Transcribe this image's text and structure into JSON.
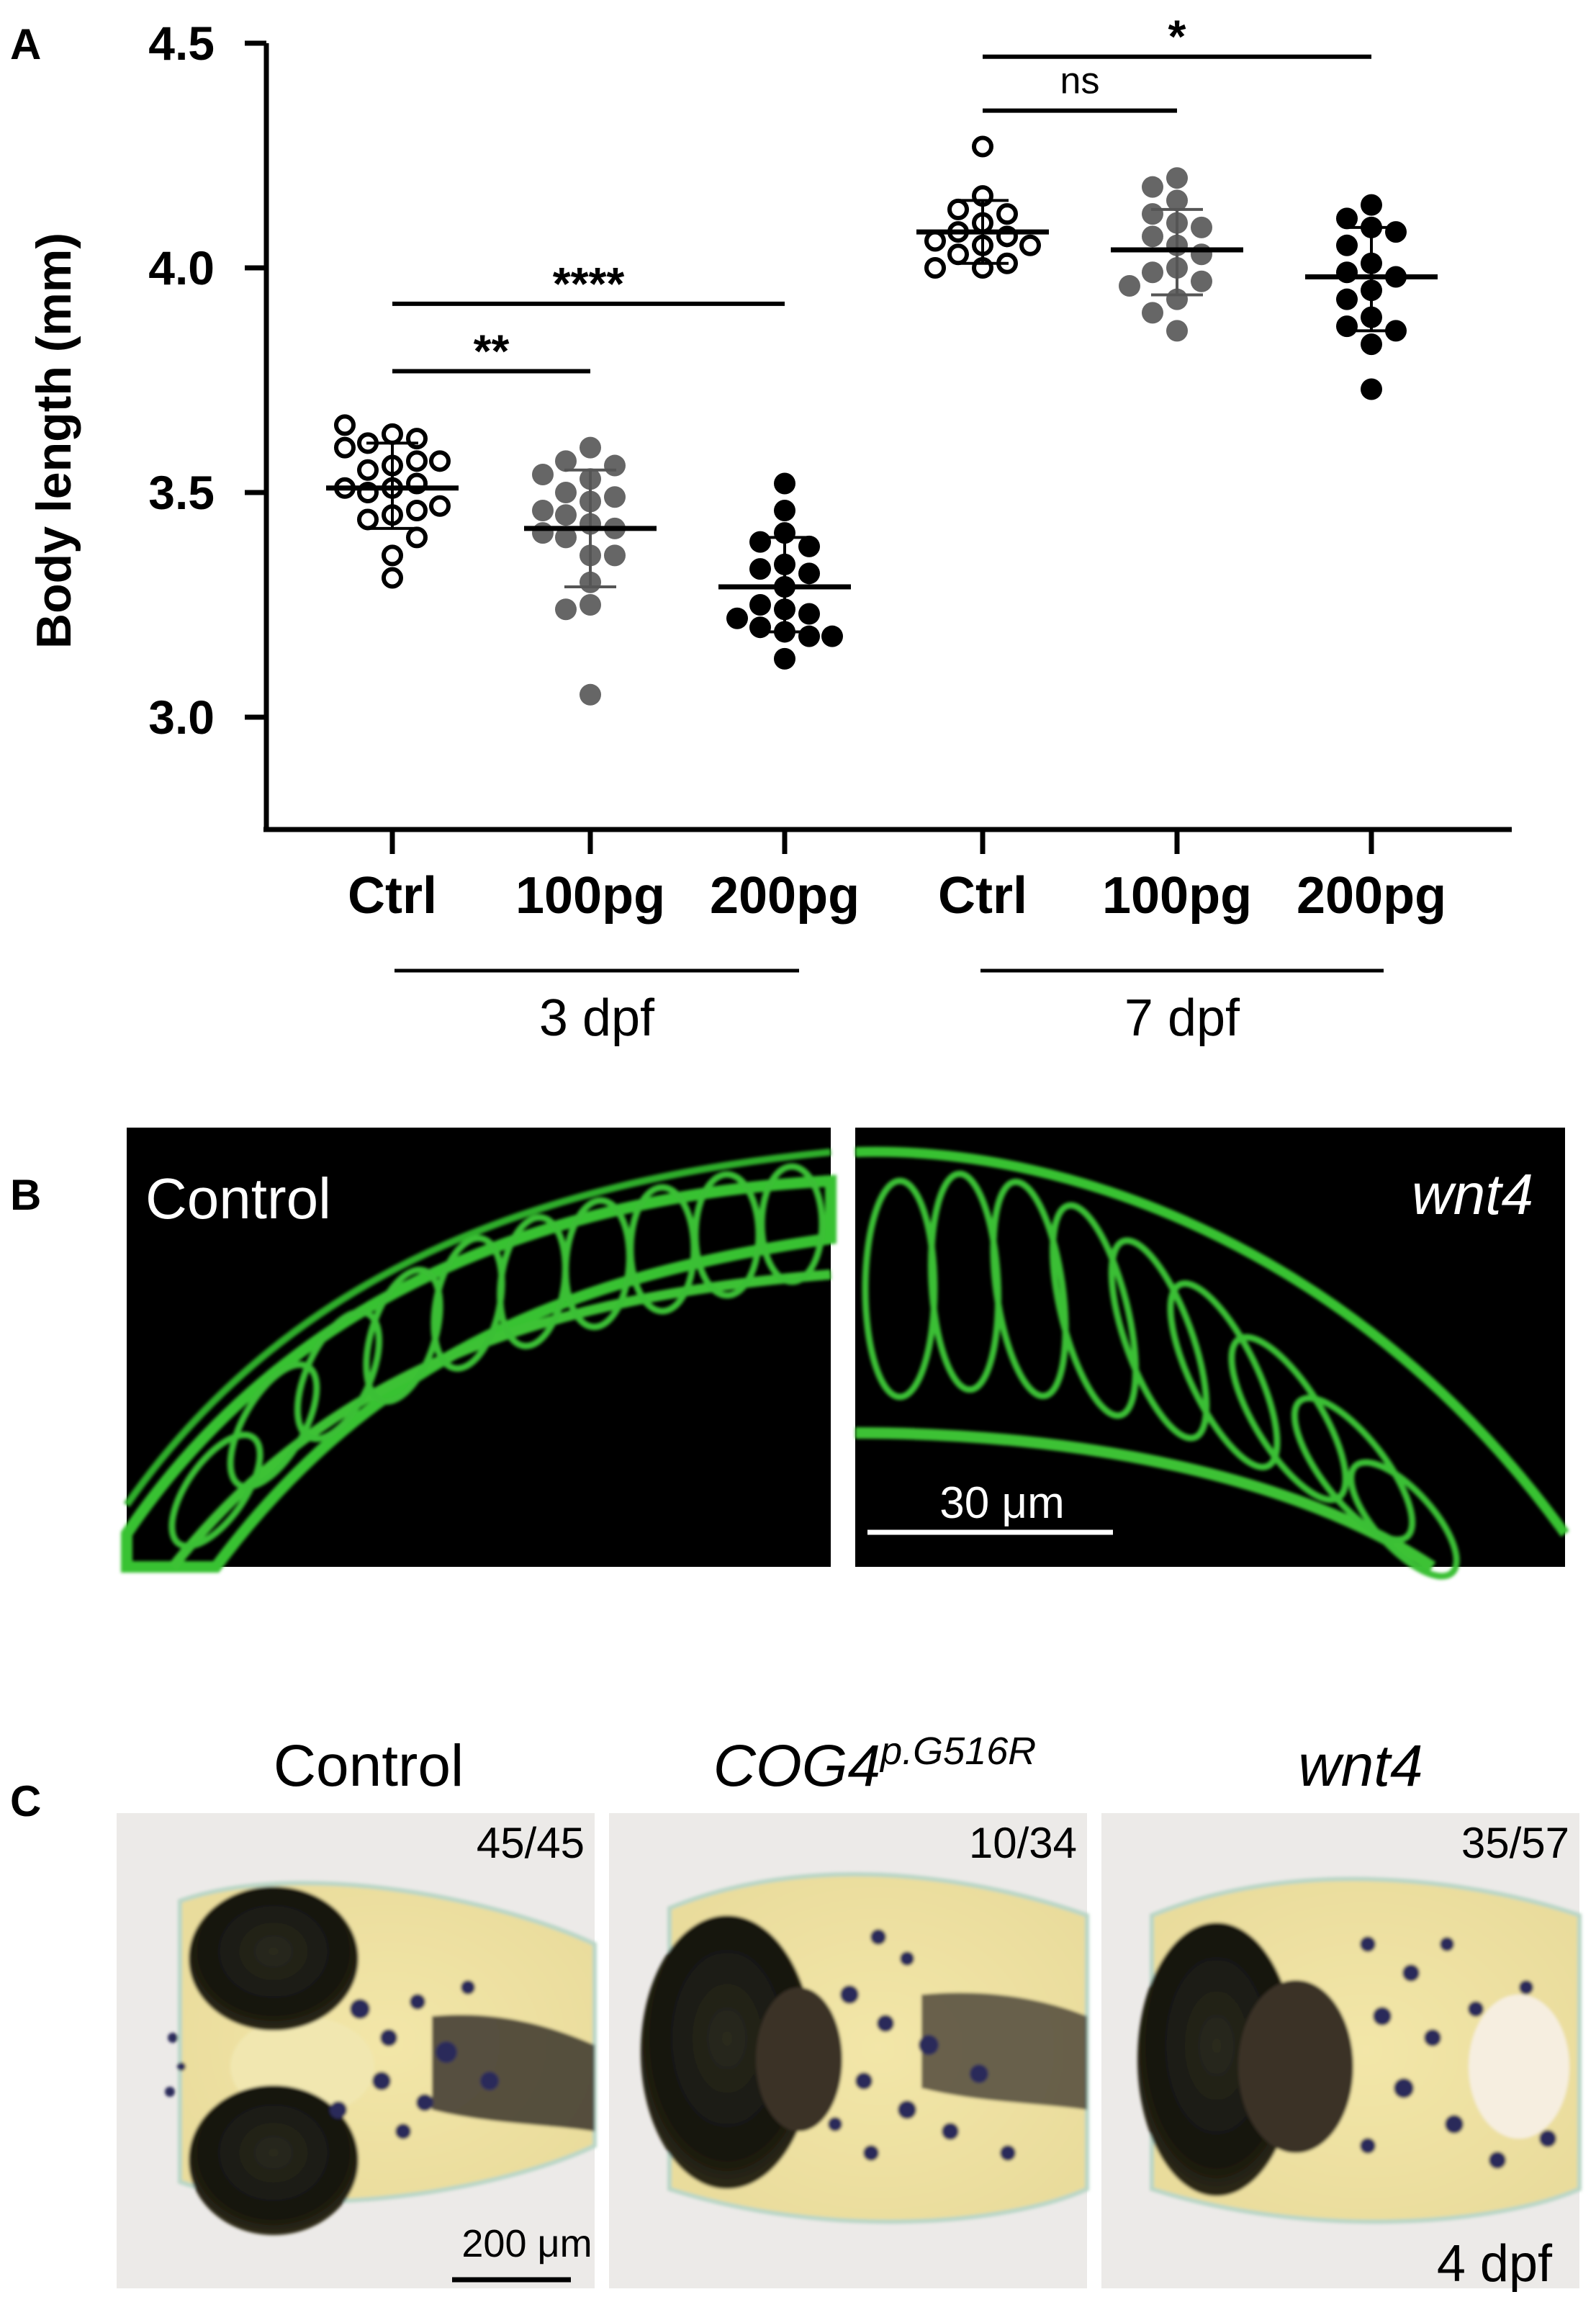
{
  "panels": {
    "A": "A",
    "B": "B",
    "C": "C"
  },
  "chart_data": {
    "type": "scatter",
    "title": "",
    "ylabel": "Body length (mm)",
    "xlabel": "",
    "ylim": [
      2.75,
      4.5
    ],
    "yticks": [
      "3.0",
      "3.5",
      "4.0",
      "4.5"
    ],
    "ytick_values": [
      3.0,
      3.5,
      4.0,
      4.5
    ],
    "categories": [
      "Ctrl",
      "100pg",
      "200pg",
      "Ctrl",
      "100pg",
      "200pg"
    ],
    "groups": [
      {
        "label": "3 dpf",
        "categories": [
          0,
          1,
          2
        ]
      },
      {
        "label": "7 dpf",
        "categories": [
          3,
          4,
          5
        ]
      }
    ],
    "series": [
      {
        "category": 0,
        "group": "3 dpf",
        "marker": "open",
        "color": "#000000",
        "mean": 3.51,
        "sd": [
          3.42,
          3.61
        ],
        "values": [
          3.63,
          3.61,
          3.62,
          3.6,
          3.65,
          3.56,
          3.57,
          3.55,
          3.57,
          3.51,
          3.52,
          3.5,
          3.51,
          3.45,
          3.46,
          3.44,
          3.47,
          3.36,
          3.4,
          3.31
        ]
      },
      {
        "category": 1,
        "group": "3 dpf",
        "marker": "filled",
        "color": "#666666",
        "mean": 3.42,
        "sd": [
          3.29,
          3.55
        ],
        "values": [
          3.6,
          3.57,
          3.56,
          3.53,
          3.54,
          3.5,
          3.49,
          3.48,
          3.46,
          3.45,
          3.43,
          3.42,
          3.4,
          3.41,
          3.36,
          3.36,
          3.3,
          3.25,
          3.24,
          3.05
        ]
      },
      {
        "category": 2,
        "group": "3 dpf",
        "marker": "filled",
        "color": "#000000",
        "mean": 3.29,
        "sd": [
          3.19,
          3.4
        ],
        "values": [
          3.52,
          3.46,
          3.41,
          3.39,
          3.38,
          3.34,
          3.33,
          3.32,
          3.29,
          3.25,
          3.24,
          3.23,
          3.22,
          3.2,
          3.19,
          3.18,
          3.18,
          3.13
        ]
      },
      {
        "category": 3,
        "group": "7 dpf",
        "marker": "open",
        "color": "#000000",
        "mean": 4.08,
        "sd": [
          4.01,
          4.15
        ],
        "values": [
          4.27,
          4.16,
          4.13,
          4.12,
          4.1,
          4.08,
          4.07,
          4.06,
          4.05,
          4.05,
          4.03,
          4.01,
          4.0,
          4.0
        ]
      },
      {
        "category": 4,
        "group": "7 dpf",
        "marker": "filled",
        "color": "#666666",
        "mean": 4.04,
        "sd": [
          3.94,
          4.13
        ],
        "values": [
          4.2,
          4.18,
          4.15,
          4.12,
          4.1,
          4.09,
          4.07,
          4.05,
          4.03,
          4.0,
          3.99,
          3.97,
          3.96,
          3.93,
          3.9,
          3.86
        ]
      },
      {
        "category": 5,
        "group": "7 dpf",
        "marker": "filled",
        "color": "#000000",
        "mean": 3.98,
        "sd": [
          3.86,
          4.09
        ],
        "values": [
          4.14,
          4.11,
          4.09,
          4.08,
          4.05,
          4.01,
          3.99,
          3.98,
          3.95,
          3.93,
          3.89,
          3.87,
          3.86,
          3.83,
          3.73
        ]
      }
    ],
    "significance": [
      {
        "from": 0,
        "to": 1,
        "y": 3.77,
        "label": "**"
      },
      {
        "from": 0,
        "to": 2,
        "y": 3.92,
        "label": "****"
      },
      {
        "from": 3,
        "to": 4,
        "y": 4.35,
        "label": "ns"
      },
      {
        "from": 3,
        "to": 5,
        "y": 4.47,
        "label": "*"
      }
    ]
  },
  "panel_b": {
    "left_label": "Control",
    "right_label": "wnt4",
    "scale_bar": "30 μm"
  },
  "panel_c": {
    "columns": [
      {
        "title": "Control",
        "title_sup": "",
        "count": "45/45"
      },
      {
        "title": "COG4",
        "title_sup": "p.G516R",
        "count": "10/34"
      },
      {
        "title": "wnt4",
        "title_sup": "",
        "count": "35/57"
      }
    ],
    "scale_bar": "200 μm",
    "stage": "4 dpf"
  }
}
